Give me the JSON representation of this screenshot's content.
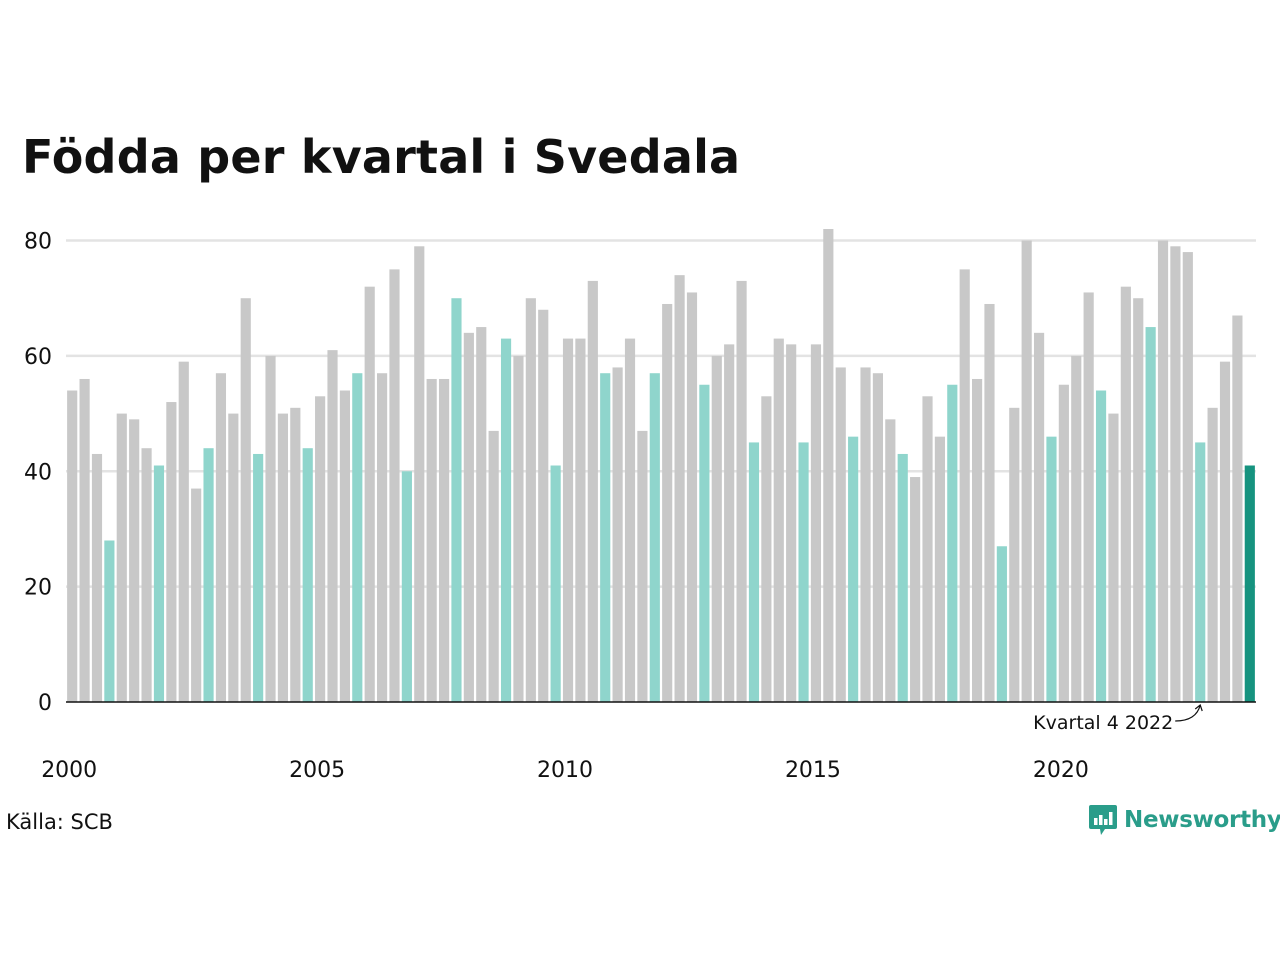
{
  "chart_data": {
    "type": "bar",
    "title": "Födda per kvartal i Svedala",
    "xlabel": "",
    "ylabel": "",
    "ylim": [
      0,
      82
    ],
    "yticks": [
      0,
      20,
      40,
      60,
      80
    ],
    "grid": true,
    "x_tick_labels": [
      "2000",
      "2005",
      "2010",
      "2015",
      "2020"
    ],
    "x_tick_years": [
      2000,
      2005,
      2010,
      2015,
      2020
    ],
    "start_year": 2000,
    "series": [
      {
        "values": [
          54,
          56,
          43,
          28,
          50,
          49,
          44,
          41,
          52,
          59,
          37,
          44,
          57,
          50,
          70,
          43,
          60,
          50,
          51,
          44,
          53,
          61,
          54,
          57,
          72,
          57,
          75,
          40,
          79,
          56,
          56,
          70,
          64,
          65,
          47,
          63,
          60,
          70,
          68,
          41,
          63,
          63,
          73,
          57,
          58,
          63,
          47,
          57,
          69,
          74,
          71,
          55,
          60,
          62,
          73,
          45,
          53,
          63,
          62,
          45,
          62,
          82,
          58,
          46,
          58,
          57,
          49,
          43,
          39,
          53,
          46,
          55,
          75,
          56,
          69,
          27,
          51,
          80,
          64,
          46,
          55,
          60,
          71,
          54,
          50,
          72,
          70,
          65,
          80,
          79,
          78,
          45,
          51,
          59,
          67,
          41
        ]
      }
    ],
    "highlight_quarter": 4,
    "annotation": {
      "text": "Kvartal 4 2022",
      "index": 91
    },
    "colors": {
      "bar": "#c8c8c8",
      "quarter_highlight": "#8fd5cc",
      "latest": "#16937f",
      "grid": "#e3e3e3",
      "axis": "#111111"
    }
  },
  "source_label": "Källa: SCB",
  "brand": {
    "name": "Newsworthy",
    "icon": "chart-bubble-icon",
    "color": "#2a9d8a"
  }
}
